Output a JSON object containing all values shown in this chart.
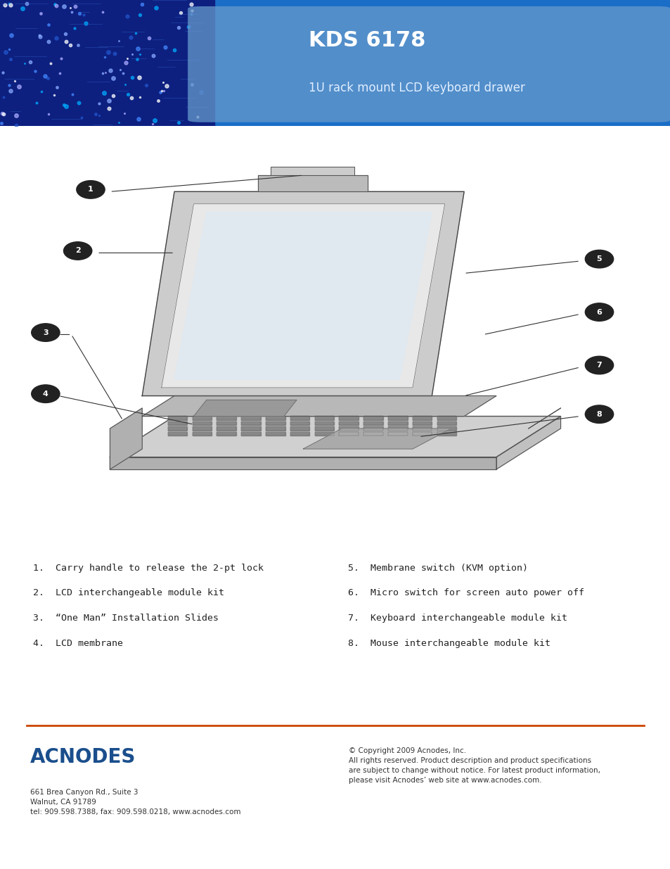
{
  "title": "KDS 6178",
  "subtitle": "1U rack mount LCD keyboard drawer",
  "header_bg_color": "#1a6ec7",
  "header_light_bg": "#6699cc",
  "page_bg": "#ffffff",
  "title_color": "#ffffff",
  "subtitle_color": "#e0eeff",
  "left_labels": [
    "1.  Carry handle to release the 2-pt lock",
    "2.  LCD interchangeable module kit",
    "3.  “One Man” Installation Slides",
    "4.  LCD membrane"
  ],
  "right_labels": [
    "5.  Membrane switch (KVM option)",
    "6.  Micro switch for screen auto power off",
    "7.  Keyboard interchangeable module kit",
    "8.  Mouse interchangeable module kit"
  ],
  "footer_line_color": "#cc4400",
  "footer_company": "ACNODES",
  "footer_company_color": "#1a4e8c",
  "footer_address": "661 Brea Canyon Rd., Suite 3\nWalnut, CA 91789\ntel: 909.598.7388, fax: 909.598.0218, www.acnodes.com",
  "footer_copyright": "© Copyright 2009 Acnodes, Inc.\nAll rights reserved. Product description and product specifications\nare subject to change without notice. For latest product information,\nplease visit Acnodes’ web site at www.acnodes.com.",
  "footer_text_color": "#333333",
  "label_font_size": 9.5,
  "number_circle_color": "#222222",
  "number_text_color": "#ffffff",
  "line_color": "#333333"
}
